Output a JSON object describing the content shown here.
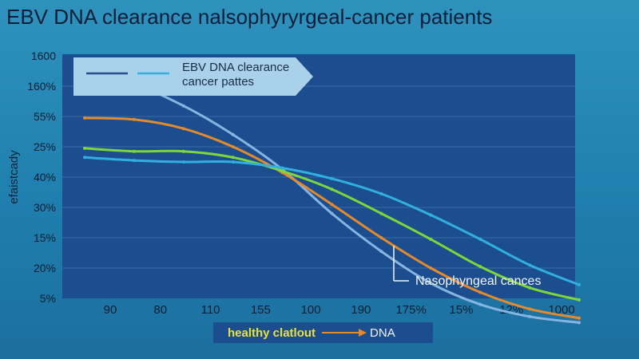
{
  "title": "EBV DNA clearance nalsophyryrgeal-cancer patients",
  "chart_data": {
    "type": "line",
    "ylabel": "efaistcady",
    "y_ticks": [
      "1600",
      "160%",
      "55%",
      "25%",
      "40%",
      "30%",
      "15%",
      "20%",
      "5%"
    ],
    "x_ticks": [
      "90",
      "80",
      "110",
      "155",
      "100",
      "190",
      "175%",
      "15%",
      "12%",
      "1000"
    ],
    "legend": {
      "lines": [
        "EBV DNA clearance",
        "cancer pattes"
      ]
    },
    "annotation": "Nasophyngeal cances",
    "series": [
      {
        "color": "#86b4e3",
        "values": [
          0.7,
          0.95,
          1.65,
          2.6,
          3.75,
          5.2,
          6.45,
          7.5,
          8.2,
          8.6,
          8.8
        ]
      },
      {
        "color": "#e38a2c",
        "values": [
          2.05,
          2.1,
          2.4,
          3.0,
          3.85,
          4.9,
          6.0,
          7.0,
          7.8,
          8.35,
          8.65
        ]
      },
      {
        "color": "#7fd63a",
        "values": [
          3.05,
          3.15,
          3.15,
          3.35,
          3.8,
          4.4,
          5.2,
          6.05,
          6.95,
          7.65,
          8.05
        ]
      },
      {
        "color": "#2fb0e0",
        "values": [
          3.35,
          3.45,
          3.5,
          3.5,
          3.7,
          4.05,
          4.55,
          5.25,
          6.05,
          6.9,
          7.55
        ]
      }
    ]
  },
  "bottom_legend": {
    "label_1": "healthy clatlout",
    "label_2": "DNA",
    "color_1": "#e8e23a",
    "arrow_color": "#e38a2c"
  }
}
